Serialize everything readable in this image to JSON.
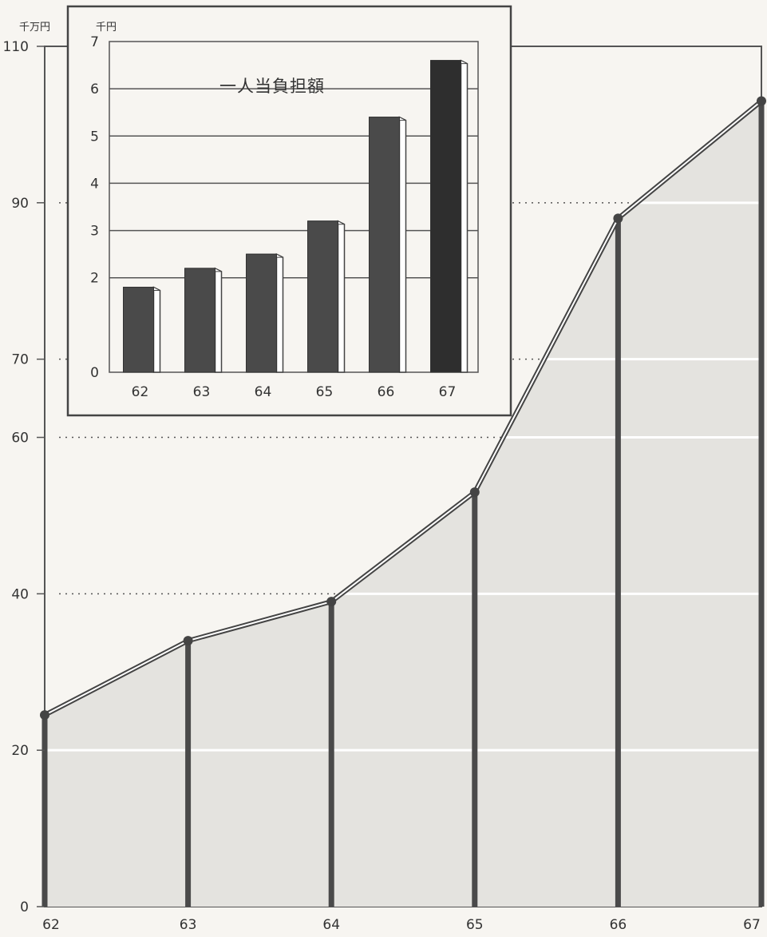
{
  "chart_data": [
    {
      "type": "area",
      "title": "",
      "xlabel": "",
      "ylabel": "",
      "y_unit": "千万円",
      "x": [
        "62",
        "63",
        "64",
        "65",
        "66",
        "67"
      ],
      "values": [
        24.5,
        34,
        39,
        53,
        88,
        103
      ],
      "yticks": [
        "0",
        "20",
        "40",
        "60",
        "70",
        "90",
        "110"
      ],
      "ylim": [
        0,
        110
      ],
      "grid": true,
      "colors": {
        "fill": "#e4e3df",
        "line": "#444444",
        "stem": "#4a4a4a"
      }
    },
    {
      "type": "bar",
      "title": "一人当負担額",
      "xlabel": "",
      "ylabel": "",
      "y_unit": "千円",
      "categories": [
        "62",
        "63",
        "64",
        "65",
        "66",
        "67"
      ],
      "values": [
        1.8,
        2.2,
        2.5,
        3.2,
        5.4,
        6.6
      ],
      "yticks": [
        "0",
        "2",
        "3",
        "4",
        "5",
        "6",
        "7"
      ],
      "ylim": [
        0,
        7
      ],
      "grid": true,
      "legend": "none",
      "colors": {
        "bar": "#4a4a4a",
        "bar_last": "#2e2e2e"
      }
    }
  ]
}
